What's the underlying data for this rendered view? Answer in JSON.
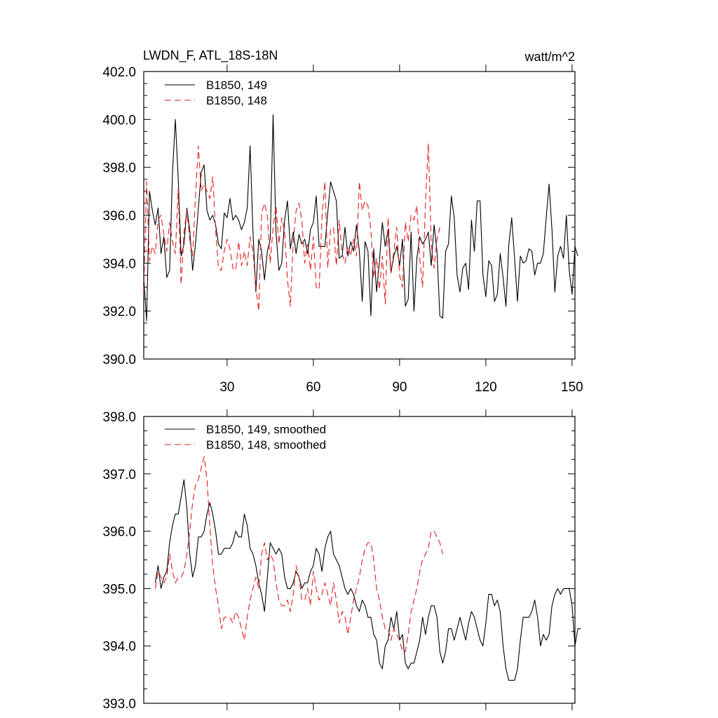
{
  "chart_data": [
    {
      "type": "line",
      "title": "LWDN_F, ATL_18S-18N",
      "units": "watt/m^2",
      "ylim": [
        390,
        402
      ],
      "xlim": [
        1,
        151
      ],
      "yticks": [
        390,
        392,
        394,
        396,
        398,
        400,
        402
      ],
      "ytick_labels": [
        "390.0",
        "392.0",
        "394.0",
        "396.0",
        "398.0",
        "400.0",
        "402.0"
      ],
      "xticks": [
        30,
        60,
        90,
        120,
        150
      ],
      "xtick_labels": [
        "30",
        "60",
        "90",
        "120",
        "150"
      ],
      "legend_position": "top-left",
      "series": [
        {
          "name": "B1850, 149",
          "color": "#000000",
          "dash": "solid",
          "x_start": 1,
          "values": [
            393.4,
            391.6,
            397.0,
            396.2,
            395.6,
            396.3,
            394.4,
            395.1,
            393.4,
            393.7,
            397.8,
            400.0,
            397.5,
            394.3,
            394.8,
            396.3,
            395.4,
            393.7,
            394.8,
            396.3,
            397.8,
            398.1,
            396.2,
            395.8,
            396.0,
            395.6,
            394.8,
            394.6,
            396.1,
            395.9,
            396.7,
            395.8,
            396.0,
            395.8,
            395.4,
            395.7,
            396.3,
            398.9,
            395.3,
            392.8,
            395.0,
            394.5,
            393.3,
            394.5,
            395.0,
            400.2,
            395.3,
            393.7,
            394.0,
            395.8,
            396.6,
            394.6,
            395.3,
            394.4,
            395.2,
            394.8,
            395.0,
            394.4,
            395.4,
            395.7,
            396.8,
            394.7,
            394.7,
            394.7,
            396.1,
            397.4,
            397.0,
            396.6,
            394.2,
            394.3,
            395.5,
            394.3,
            394.9,
            394.5,
            395.6,
            394.5,
            392.4,
            394.9,
            394.5,
            391.8,
            394.6,
            392.8,
            394.1,
            395.7,
            394.7,
            395.4,
            393.6,
            394.3,
            394.7,
            393.9,
            395.0,
            392.2,
            392.5,
            395.3,
            392.0,
            394.2,
            395.1,
            394.8,
            395.0,
            395.3,
            393.9,
            395.6,
            394.5,
            391.8,
            391.7,
            394.5,
            394.8,
            396.8,
            395.9,
            393.5,
            392.8,
            393.8,
            394.0,
            392.9,
            395.8,
            394.5,
            396.6,
            396.6,
            393.5,
            392.6,
            394.1,
            393.9,
            392.4,
            392.7,
            394.4,
            393.4,
            392.2,
            394.8,
            395.9,
            394.2,
            392.4,
            394.3,
            394.0,
            394.1,
            394.6,
            394.5,
            393.5,
            394.0,
            394.0,
            394.4,
            395.9,
            397.3,
            395.4,
            392.8,
            394.3,
            394.7,
            394.2,
            396.0,
            393.7,
            392.7,
            394.7,
            394.3
          ]
        },
        {
          "name": "B1850, 148",
          "color": "#e41a1c",
          "dash": "dashed",
          "x_start": 1,
          "values": [
            392.8,
            397.4,
            394.1,
            394.7,
            394.4,
            395.8,
            396.0,
            395.2,
            394.5,
            395.7,
            394.9,
            394.4,
            397.1,
            393.1,
            395.3,
            396.2,
            395.0,
            394.3,
            396.8,
            398.9,
            397.0,
            397.3,
            397.0,
            396.7,
            397.6,
            395.4,
            393.8,
            393.7,
            394.5,
            395.0,
            394.6,
            393.8,
            393.7,
            394.9,
            393.9,
            394.5,
            393.9,
            395.1,
            394.5,
            393.0,
            392.0,
            396.1,
            396.5,
            396.0,
            394.0,
            395.5,
            396.4,
            394.8,
            395.9,
            395.3,
            393.3,
            392.2,
            394.9,
            396.2,
            396.5,
            395.8,
            394.0,
            394.8,
            393.7,
            395.1,
            393.0,
            392.9,
            395.9,
            397.4,
            393.8,
            395.4,
            395.5,
            393.9,
            395.8,
            394.4,
            394.0,
            394.7,
            394.3,
            395.0,
            394.3,
            397.4,
            396.2,
            396.6,
            396.4,
            395.4,
            393.4,
            394.2,
            392.9,
            394.3,
            392.3,
            395.9,
            393.6,
            394.5,
            395.5,
            393.5,
            393.0,
            395.7,
            394.9,
            396.0,
            395.8,
            396.4,
            394.2,
            393.0,
            396.5,
            399.0,
            394.8,
            393.8,
            395.0,
            395.5
          ]
        }
      ]
    },
    {
      "type": "line",
      "title": "",
      "units": "",
      "ylim": [
        393,
        398
      ],
      "xlim": [
        1,
        151
      ],
      "yticks": [
        393,
        394,
        395,
        396,
        397,
        398
      ],
      "ytick_labels": [
        "393.0",
        "394.0",
        "395.0",
        "396.0",
        "397.0",
        "398.0"
      ],
      "xticks": [
        30,
        60,
        90,
        120,
        150
      ],
      "xtick_labels": [],
      "legend_position": "top-left",
      "series": [
        {
          "name": "B1850, 149, smoothed",
          "color": "#000000",
          "dash": "solid",
          "x_start": 5,
          "values": [
            395.1,
            395.4,
            395.0,
            395.2,
            395.3,
            395.8,
            396.1,
            396.3,
            396.3,
            396.6,
            396.9,
            396.4,
            395.6,
            395.2,
            395.4,
            395.9,
            395.9,
            396.0,
            396.3,
            396.5,
            396.3,
            396.0,
            395.6,
            395.6,
            395.7,
            395.7,
            395.7,
            395.8,
            396.0,
            395.9,
            395.9,
            396.3,
            396.1,
            395.7,
            395.6,
            395.4,
            395.1,
            394.9,
            394.6,
            395.2,
            395.8,
            395.7,
            395.6,
            395.7,
            395.6,
            395.2,
            395.0,
            395.0,
            395.1,
            395.3,
            395.2,
            395.0,
            395.1,
            395.1,
            395.3,
            395.4,
            395.7,
            395.6,
            395.3,
            395.7,
            395.9,
            396.0,
            395.6,
            395.5,
            395.4,
            395.2,
            395.0,
            394.9,
            395.0,
            394.9,
            394.7,
            394.6,
            394.8,
            394.7,
            394.5,
            394.5,
            394.2,
            394.1,
            393.7,
            393.6,
            394.0,
            394.1,
            394.5,
            394.3,
            394.6,
            394.1,
            394.2,
            393.7,
            393.6,
            393.7,
            393.7,
            393.9,
            394.1,
            394.5,
            394.2,
            394.5,
            394.7,
            394.7,
            394.5,
            393.9,
            393.7,
            393.9,
            394.3,
            394.3,
            394.1,
            394.3,
            394.5,
            394.3,
            394.1,
            394.4,
            394.6,
            394.5,
            394.3,
            394.1,
            394.0,
            394.4,
            394.9,
            394.9,
            394.7,
            394.8,
            394.6,
            394.0,
            393.6,
            393.4,
            393.4,
            393.4,
            393.6,
            394.1,
            394.5,
            394.5,
            394.5,
            394.6,
            394.8,
            394.5,
            394.0,
            394.2,
            394.1,
            394.2,
            394.7,
            394.9,
            395.0,
            394.9,
            395.0,
            395.0,
            395.0,
            394.7,
            394.0,
            394.3,
            394.3
          ]
        },
        {
          "name": "B1850, 148, smoothed",
          "color": "#e41a1c",
          "dash": "dashed",
          "x_start": 5,
          "values": [
            395.0,
            395.3,
            395.2,
            395.1,
            395.2,
            395.6,
            395.3,
            395.1,
            395.2,
            395.2,
            395.3,
            395.6,
            396.0,
            396.5,
            396.8,
            396.9,
            397.1,
            397.3,
            396.9,
            396.1,
            395.4,
            395.0,
            394.7,
            394.3,
            394.5,
            394.5,
            394.5,
            394.4,
            394.6,
            394.5,
            394.3,
            394.1,
            394.5,
            394.8,
            395.0,
            395.2,
            395.0,
            395.6,
            395.8,
            395.5,
            395.6,
            395.5,
            395.1,
            394.8,
            394.7,
            394.7,
            394.8,
            394.6,
            394.9,
            395.4,
            395.2,
            394.8,
            394.8,
            395.0,
            394.7,
            395.3,
            395.0,
            394.8,
            394.9,
            395.1,
            394.9,
            394.7,
            395.1,
            394.8,
            394.4,
            394.6,
            394.5,
            394.2,
            394.5,
            394.8,
            395.0,
            395.2,
            395.5,
            395.7,
            395.8,
            395.8,
            395.5,
            395.0,
            394.8,
            394.5,
            394.3,
            394.3,
            394.1,
            394.3,
            394.2,
            394.1,
            393.9,
            393.9,
            394.2,
            394.6,
            394.8,
            395.0,
            395.3,
            395.5,
            395.6,
            395.7,
            396.0,
            396.0,
            395.9,
            395.8,
            395.6
          ]
        }
      ]
    }
  ]
}
